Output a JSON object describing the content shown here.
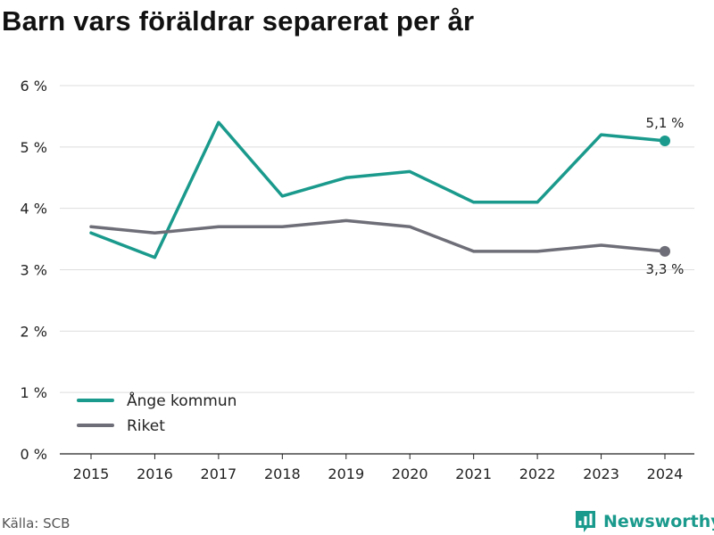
{
  "chart_data": {
    "type": "line",
    "title": "Barn vars föräldrar separerat per år",
    "x": [
      2015,
      2016,
      2017,
      2018,
      2019,
      2020,
      2021,
      2022,
      2023,
      2024
    ],
    "x_tick_labels": [
      "2015",
      "2016",
      "2017",
      "2018",
      "2019",
      "2020",
      "2021",
      "2022",
      "2023",
      "2024"
    ],
    "ylim": [
      0,
      6
    ],
    "y_ticks": [
      0,
      1,
      2,
      3,
      4,
      5,
      6
    ],
    "y_tick_labels": [
      "0 %",
      "1 %",
      "2 %",
      "3 %",
      "4 %",
      "5 %",
      "6 %"
    ],
    "grid": true,
    "legend_position": "bottom-left",
    "series": [
      {
        "name": "Ånge kommun",
        "color": "#1a9a8c",
        "values": [
          3.6,
          3.2,
          5.4,
          4.2,
          4.5,
          4.6,
          4.1,
          4.1,
          5.2,
          5.1
        ],
        "end_label": "5,1 %"
      },
      {
        "name": "Riket",
        "color": "#6e6e78",
        "values": [
          3.7,
          3.6,
          3.7,
          3.7,
          3.8,
          3.7,
          3.3,
          3.3,
          3.4,
          3.3
        ],
        "end_label": "3,3 %"
      }
    ]
  },
  "footer": {
    "source": "Källa: SCB",
    "brand": "Newsworthy",
    "brand_icon": "bar-chart-logo-icon",
    "brand_color": "#1a9a8c"
  }
}
